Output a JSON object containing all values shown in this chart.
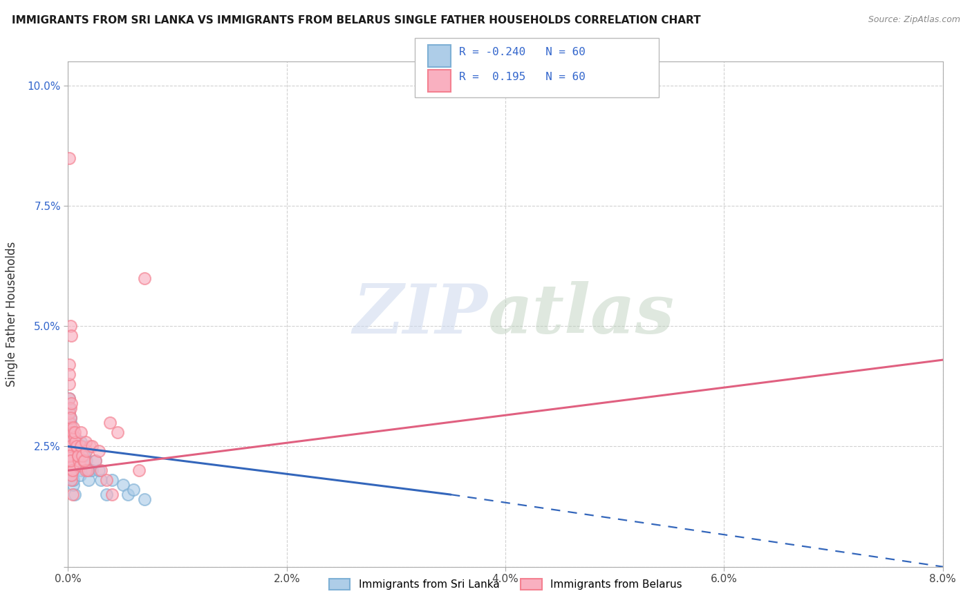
{
  "title": "IMMIGRANTS FROM SRI LANKA VS IMMIGRANTS FROM BELARUS SINGLE FATHER HOUSEHOLDS CORRELATION CHART",
  "source": "Source: ZipAtlas.com",
  "ylabel": "Single Father Households",
  "xlim": [
    0.0,
    0.08
  ],
  "ylim": [
    0.0,
    0.105
  ],
  "xticks": [
    0.0,
    0.02,
    0.04,
    0.06,
    0.08
  ],
  "xtick_labels": [
    "0.0%",
    "2.0%",
    "4.0%",
    "6.0%",
    "8.0%"
  ],
  "yticks": [
    0.0,
    0.025,
    0.05,
    0.075,
    0.1
  ],
  "ytick_labels": [
    "",
    "2.5%",
    "5.0%",
    "7.5%",
    "10.0%"
  ],
  "sri_lanka_edge": "#7eb0d5",
  "sri_lanka_face": "#aecde8",
  "belarus_edge": "#f48090",
  "belarus_face": "#f9b0c0",
  "r_sri_lanka": -0.24,
  "r_belarus": 0.195,
  "n": 60,
  "legend_r_color": "#3366cc",
  "sri_lanka_x": [
    0.0002,
    0.0004,
    0.0003,
    0.0005,
    0.0002,
    0.0004,
    0.0003,
    0.0001,
    0.0006,
    0.0003,
    0.0002,
    0.0005,
    0.0003,
    0.0002,
    0.0004,
    0.0001,
    0.0003,
    0.0002,
    0.0005,
    0.0003,
    0.0004,
    0.0002,
    0.0003,
    0.0001,
    0.0002,
    0.0004,
    0.0003,
    0.0002,
    0.0005,
    0.0003,
    0.001,
    0.0008,
    0.0006,
    0.0012,
    0.0009,
    0.0007,
    0.0011,
    0.0008,
    0.0006,
    0.001,
    0.0015,
    0.0013,
    0.0018,
    0.0014,
    0.0016,
    0.0012,
    0.002,
    0.0017,
    0.0019,
    0.0015,
    0.0025,
    0.0022,
    0.003,
    0.0035,
    0.0028,
    0.004,
    0.005,
    0.0055,
    0.006,
    0.007
  ],
  "sri_lanka_y": [
    0.025,
    0.022,
    0.028,
    0.02,
    0.03,
    0.018,
    0.026,
    0.032,
    0.015,
    0.024,
    0.027,
    0.021,
    0.023,
    0.029,
    0.019,
    0.033,
    0.025,
    0.031,
    0.017,
    0.026,
    0.022,
    0.028,
    0.024,
    0.035,
    0.027,
    0.02,
    0.029,
    0.023,
    0.018,
    0.025,
    0.022,
    0.026,
    0.024,
    0.02,
    0.023,
    0.025,
    0.019,
    0.022,
    0.027,
    0.021,
    0.023,
    0.025,
    0.02,
    0.022,
    0.024,
    0.026,
    0.02,
    0.022,
    0.018,
    0.023,
    0.022,
    0.02,
    0.018,
    0.015,
    0.02,
    0.018,
    0.017,
    0.015,
    0.016,
    0.014
  ],
  "belarus_x": [
    0.0001,
    0.0003,
    0.0002,
    0.0004,
    0.0001,
    0.0003,
    0.0002,
    0.0001,
    0.0004,
    0.0002,
    0.0003,
    0.0001,
    0.0002,
    0.0003,
    0.0001,
    0.0004,
    0.0002,
    0.0001,
    0.0003,
    0.0002,
    0.0004,
    0.0001,
    0.0002,
    0.0003,
    0.0001,
    0.0002,
    0.0004,
    0.0001,
    0.0003,
    0.0002,
    0.0008,
    0.0006,
    0.001,
    0.0007,
    0.0009,
    0.0005,
    0.0011,
    0.0008,
    0.0006,
    0.0009,
    0.0014,
    0.0012,
    0.0016,
    0.0013,
    0.0018,
    0.0015,
    0.002,
    0.0017,
    0.0012,
    0.0016,
    0.0025,
    0.003,
    0.0022,
    0.0035,
    0.0028,
    0.004,
    0.0038,
    0.0045,
    0.007,
    0.0065
  ],
  "belarus_y": [
    0.025,
    0.022,
    0.028,
    0.02,
    0.03,
    0.018,
    0.026,
    0.032,
    0.015,
    0.024,
    0.027,
    0.035,
    0.023,
    0.029,
    0.038,
    0.021,
    0.033,
    0.042,
    0.019,
    0.031,
    0.02,
    0.085,
    0.05,
    0.048,
    0.04,
    0.025,
    0.028,
    0.023,
    0.034,
    0.022,
    0.025,
    0.027,
    0.022,
    0.026,
    0.023,
    0.029,
    0.021,
    0.025,
    0.028,
    0.023,
    0.022,
    0.025,
    0.02,
    0.023,
    0.02,
    0.022,
    0.025,
    0.024,
    0.028,
    0.026,
    0.022,
    0.02,
    0.025,
    0.018,
    0.024,
    0.015,
    0.03,
    0.028,
    0.06,
    0.02
  ]
}
